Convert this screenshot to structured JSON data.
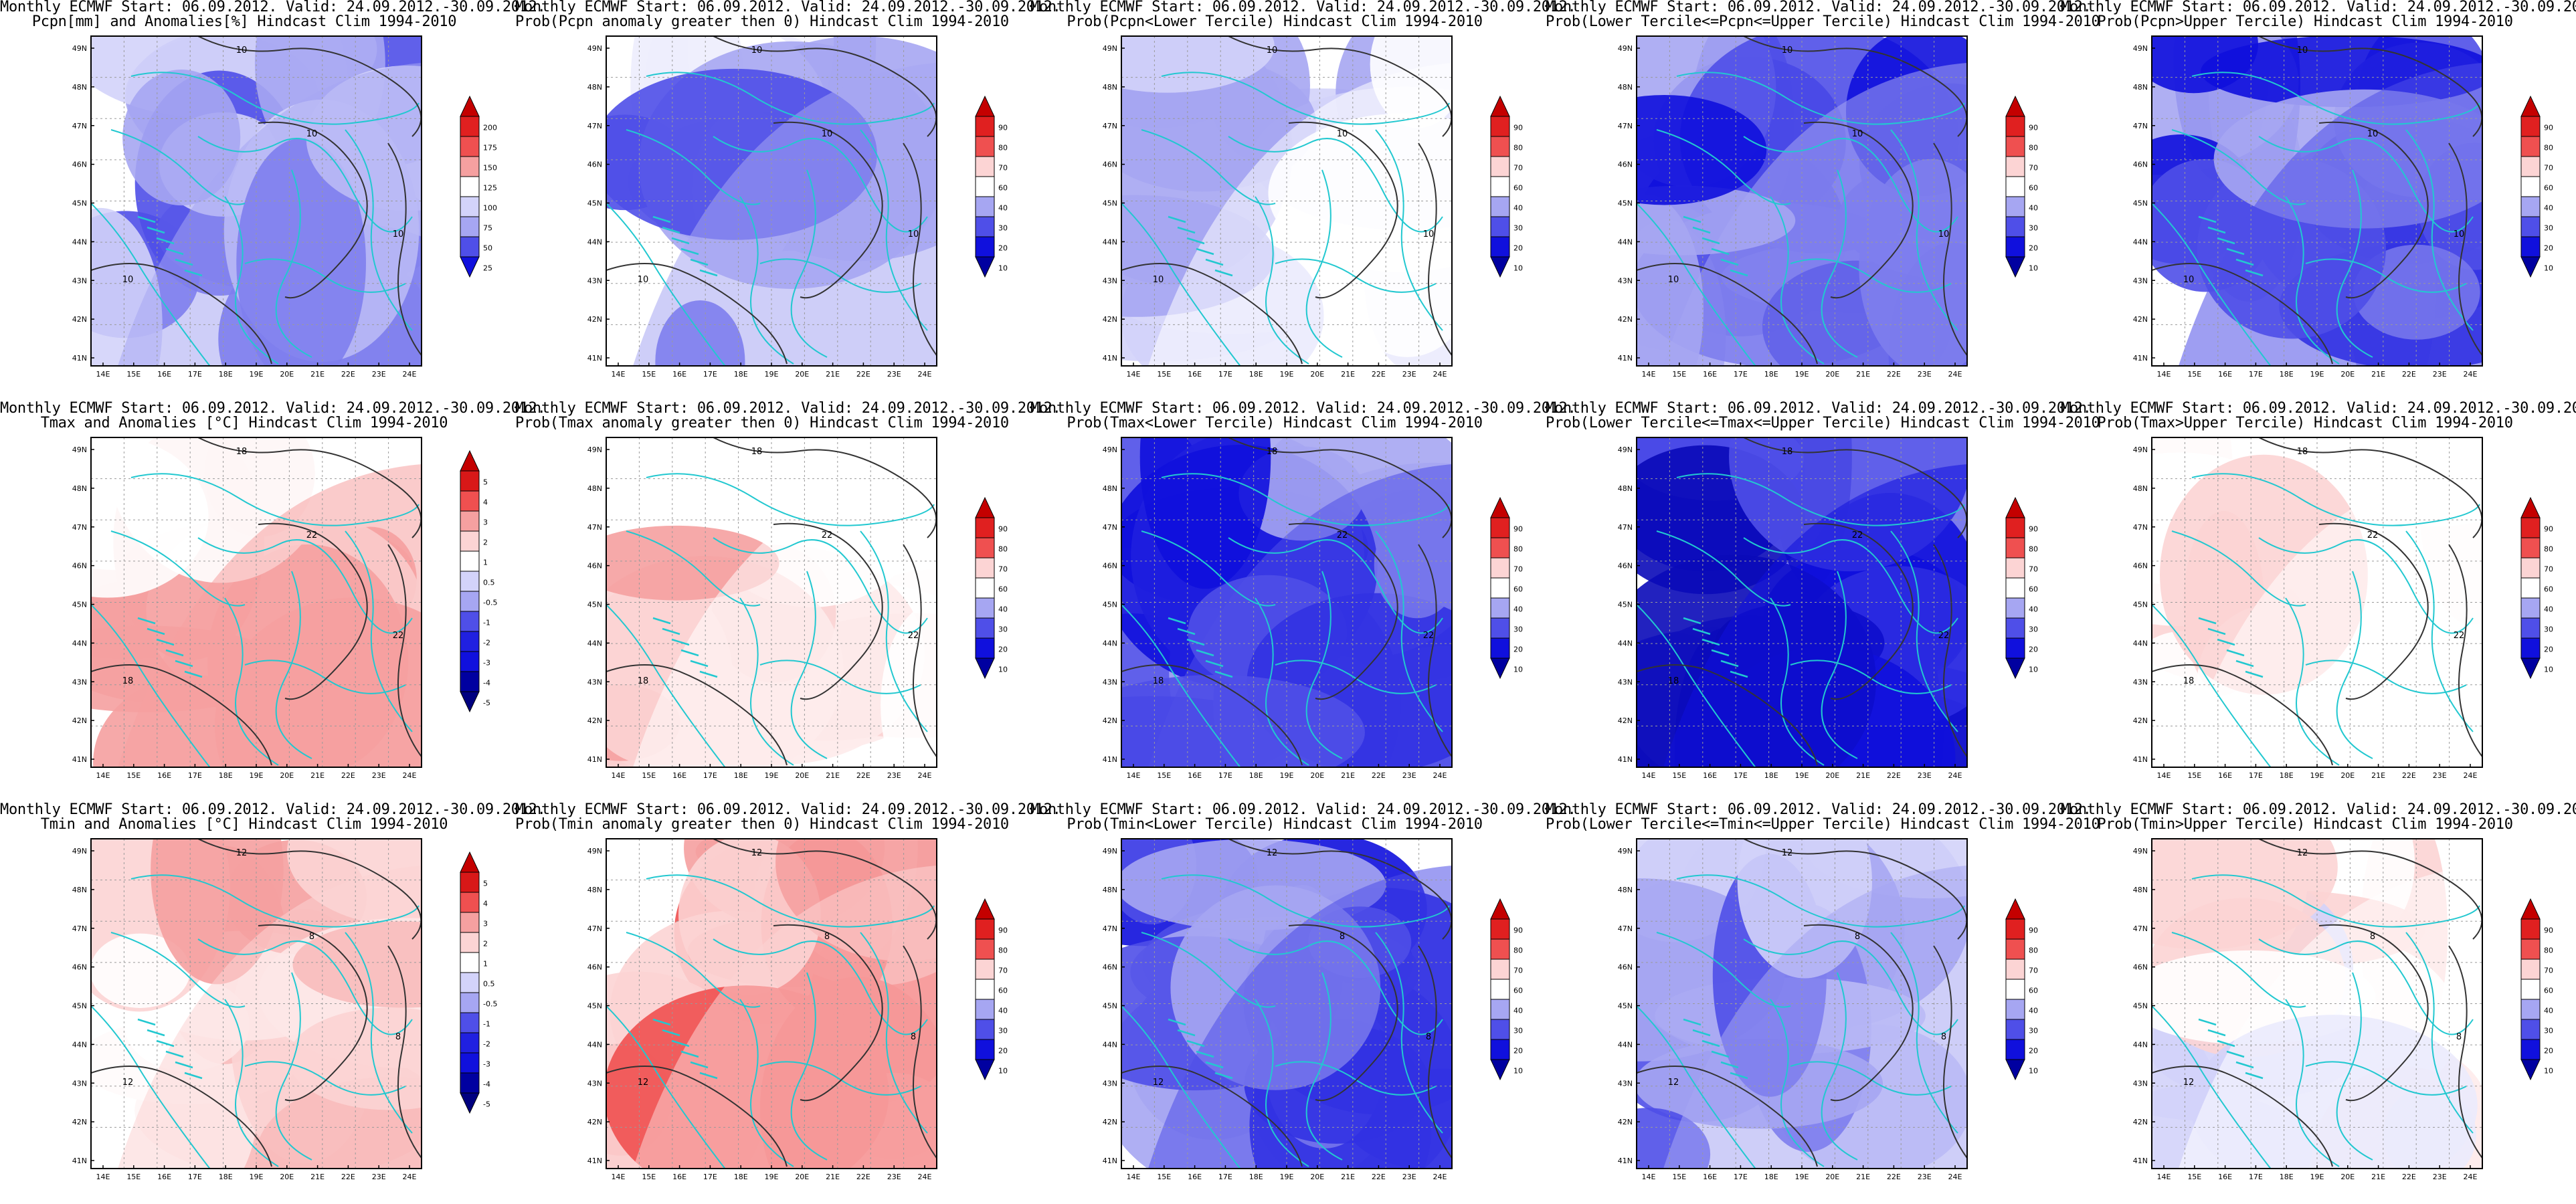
{
  "header": "Monthly ECMWF Start: 06.09.2012. Valid: 24.09.2012.-30.09.2012.",
  "lon_ticks": [
    "14E",
    "15E",
    "16E",
    "17E",
    "18E",
    "19E",
    "20E",
    "21E",
    "22E",
    "23E",
    "24E"
  ],
  "lat_ticks": [
    "49N",
    "48N",
    "47N",
    "46N",
    "45N",
    "44N",
    "43N",
    "42N",
    "41N"
  ],
  "prob_levels": [
    "90",
    "80",
    "70",
    "60",
    "40",
    "30",
    "20",
    "10"
  ],
  "anom_p_levels": [
    "200",
    "175",
    "150",
    "125",
    "100",
    "75",
    "50",
    "25"
  ],
  "anom_t_levels": [
    "5",
    "4",
    "3",
    "2",
    "1",
    "0.5",
    "-0.5",
    "-1",
    "-2",
    "-3",
    "-4",
    "-5"
  ],
  "panels": [
    {
      "subtitle": "Pcpn[mm] and Anomalies[%] Hindcast Clim 1994-2010",
      "scale": "anom_p",
      "pattern": "p_anom",
      "contours": [
        "10",
        "10",
        "10",
        "10"
      ]
    },
    {
      "subtitle": "Prob(Pcpn anomaly greater then 0) Hindcast Clim 1994-2010",
      "scale": "prob",
      "pattern": "p_gt0",
      "contours": [
        "10",
        "10",
        "10",
        "10"
      ]
    },
    {
      "subtitle": "Prob(Pcpn<Lower Tercile) Hindcast Clim 1994-2010",
      "scale": "prob",
      "pattern": "p_low",
      "contours": [
        "10",
        "10",
        "10",
        "10"
      ]
    },
    {
      "subtitle": "Prob(Lower Tercile<=Pcpn<=Upper Tercile) Hindcast Clim 1994-2010",
      "scale": "prob",
      "pattern": "p_mid",
      "contours": [
        "10",
        "10",
        "10",
        "10"
      ]
    },
    {
      "subtitle": "Prob(Pcpn>Upper Tercile) Hindcast Clim 1994-2010",
      "scale": "prob",
      "pattern": "p_up",
      "contours": [
        "10",
        "10",
        "10",
        "10"
      ]
    },
    {
      "subtitle": "Tmax and Anomalies [°C] Hindcast Clim 1994-2010",
      "scale": "anom_t",
      "pattern": "tx_anom",
      "contours": [
        "18",
        "18",
        "22",
        "22"
      ]
    },
    {
      "subtitle": "Prob(Tmax anomaly greater then 0) Hindcast Clim 1994-2010",
      "scale": "prob",
      "pattern": "tx_gt0",
      "contours": [
        "18",
        "18",
        "22",
        "22"
      ]
    },
    {
      "subtitle": "Prob(Tmax<Lower Tercile) Hindcast Clim 1994-2010",
      "scale": "prob",
      "pattern": "tx_low",
      "contours": [
        "18",
        "18",
        "22",
        "22"
      ]
    },
    {
      "subtitle": "Prob(Lower Tercile<=Tmax<=Upper Tercile) Hindcast Clim 1994-2010",
      "scale": "prob",
      "pattern": "tx_mid",
      "contours": [
        "18",
        "18",
        "22",
        "22"
      ]
    },
    {
      "subtitle": "Prob(Tmax>Upper Tercile) Hindcast Clim 1994-2010",
      "scale": "prob",
      "pattern": "tx_up",
      "contours": [
        "18",
        "18",
        "22",
        "22"
      ]
    },
    {
      "subtitle": "Tmin and Anomalies [°C] Hindcast Clim 1994-2010",
      "scale": "anom_t",
      "pattern": "tn_anom",
      "contours": [
        "12",
        "12",
        "8",
        "8"
      ]
    },
    {
      "subtitle": "Prob(Tmin anomaly greater then 0) Hindcast Clim 1994-2010",
      "scale": "prob",
      "pattern": "tn_gt0",
      "contours": [
        "12",
        "12",
        "8",
        "8"
      ]
    },
    {
      "subtitle": "Prob(Tmin<Lower Tercile) Hindcast Clim 1994-2010",
      "scale": "prob",
      "pattern": "tn_low",
      "contours": [
        "12",
        "12",
        "8",
        "8"
      ]
    },
    {
      "subtitle": "Prob(Lower Tercile<=Tmin<=Upper Tercile) Hindcast Clim 1994-2010",
      "scale": "prob",
      "pattern": "tn_mid",
      "contours": [
        "12",
        "12",
        "8",
        "8"
      ]
    },
    {
      "subtitle": "Prob(Tmin>Upper Tercile) Hindcast Clim 1994-2010",
      "scale": "prob",
      "pattern": "tn_up",
      "contours": [
        "12",
        "12",
        "8",
        "8"
      ]
    }
  ],
  "colors": {
    "blue_dark": "#1010dd",
    "blue_mid": "#4f4fe8",
    "blue_light": "#a6a6f2",
    "blue_pale": "#d3d3fa",
    "red_dark": "#c40000",
    "red_mid": "#ef5050",
    "red_light": "#f5a0a0",
    "red_pale": "#fcd4d4",
    "coast": "#22c8d0",
    "contour": "#333333"
  }
}
